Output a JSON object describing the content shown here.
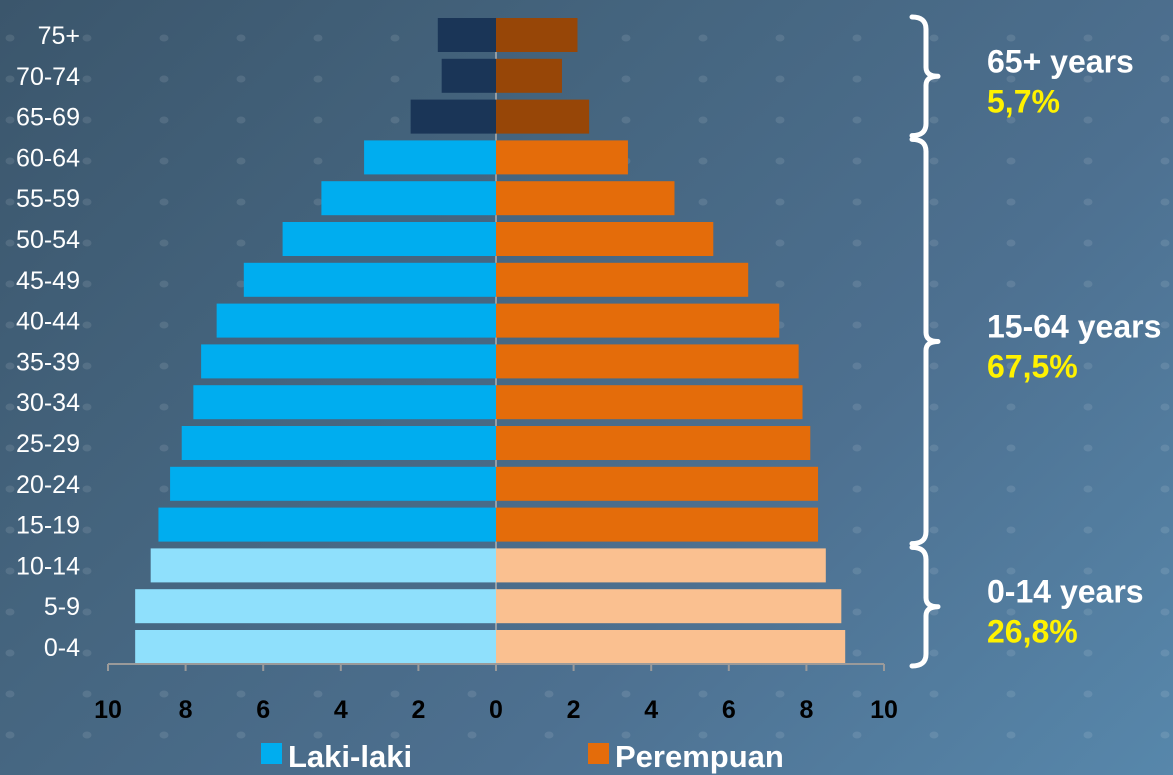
{
  "colors": {
    "male_old": "#1a3557",
    "male_working": "#00adef",
    "male_young": "#8fe0fc",
    "female_old": "#974607",
    "female_working": "#e46c0a",
    "female_young": "#fac090",
    "percent_text": "#fff200"
  },
  "chart_data": {
    "type": "bar",
    "orientation": "horizontal-population-pyramid",
    "categories": [
      "75+",
      "70-74",
      "65-69",
      "60-64",
      "55-59",
      "50-54",
      "45-49",
      "40-44",
      "35-39",
      "30-34",
      "25-29",
      "20-24",
      "15-19",
      "10-14",
      "5-9",
      "0-4"
    ],
    "series": [
      {
        "name": "Laki-laki",
        "side": "left",
        "values": [
          1.5,
          1.4,
          2.2,
          3.4,
          4.5,
          5.5,
          6.5,
          7.2,
          7.6,
          7.8,
          8.1,
          8.4,
          8.7,
          8.9,
          9.3,
          9.3
        ]
      },
      {
        "name": "Perempuan",
        "side": "right",
        "values": [
          2.1,
          1.7,
          2.4,
          3.4,
          4.6,
          5.6,
          6.5,
          7.3,
          7.8,
          7.9,
          8.1,
          8.3,
          8.3,
          8.5,
          8.9,
          9.0
        ]
      }
    ],
    "xlim": [
      -10,
      10
    ],
    "xticks": [
      "10",
      "8",
      "6",
      "4",
      "2",
      "0",
      "2",
      "4",
      "6",
      "8",
      "10"
    ],
    "legend_position": "bottom",
    "groups": [
      {
        "title": "65+ years",
        "percent": "5,7%",
        "categories": [
          "75+",
          "70-74",
          "65-69"
        ],
        "tone": "old"
      },
      {
        "title": "15-64 years",
        "percent": "67,5%",
        "categories": [
          "60-64",
          "55-59",
          "50-54",
          "45-49",
          "40-44",
          "35-39",
          "30-34",
          "25-29",
          "20-24",
          "15-19"
        ],
        "tone": "working"
      },
      {
        "title": "0-14 years",
        "percent": "26,8%",
        "categories": [
          "10-14",
          "5-9",
          "0-4"
        ],
        "tone": "young"
      }
    ]
  }
}
